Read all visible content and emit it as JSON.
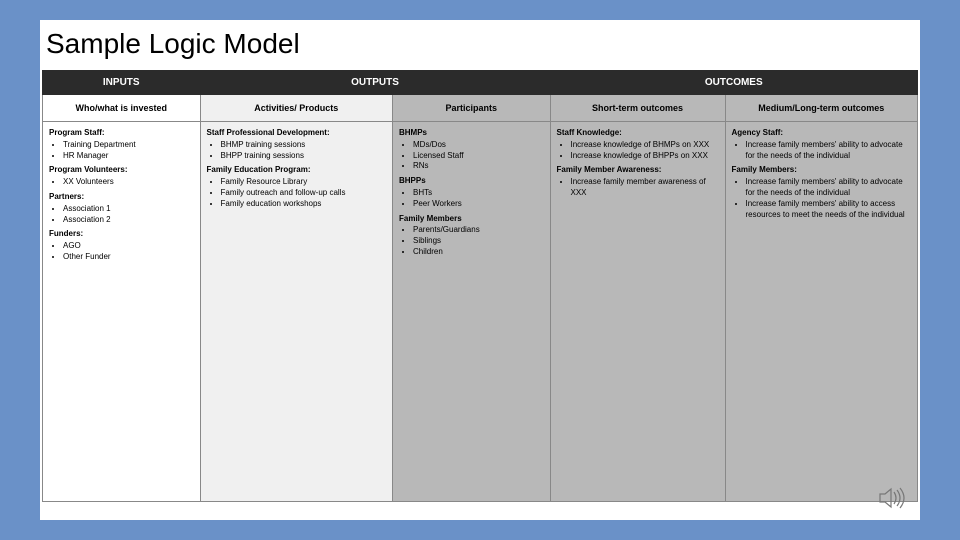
{
  "title": "Sample Logic Model",
  "columns": {
    "widths_pct": [
      18,
      22,
      18,
      20,
      22
    ],
    "bg": [
      "bg-white",
      "bg-lt",
      "bg-gy",
      "bg-gy",
      "bg-gy"
    ]
  },
  "headers_top": [
    {
      "label": "INPUTS",
      "span": 1
    },
    {
      "label": "OUTPUTS",
      "span": 2
    },
    {
      "label": "OUTCOMES",
      "span": 2
    }
  ],
  "headers_sub": [
    "Who/what is invested",
    "Activities/ Products",
    "Participants",
    "Short-term outcomes",
    "Medium/Long-term outcomes"
  ],
  "body": [
    [
      {
        "heading": "Program Staff:",
        "items": [
          "Training Department",
          "HR Manager"
        ]
      },
      {
        "heading": "Program Volunteers:",
        "items": [
          "XX Volunteers"
        ]
      },
      {
        "heading": "Partners:",
        "items": [
          "Association 1",
          "Association 2"
        ]
      },
      {
        "heading": "Funders:",
        "items": [
          "AGO",
          "Other Funder"
        ]
      }
    ],
    [
      {
        "heading": "Staff Professional Development:",
        "items": [
          "BHMP training sessions",
          "BHPP training sessions"
        ]
      },
      {
        "heading": "Family Education Program:",
        "items": [
          "Family Resource Library",
          "Family outreach and follow-up calls",
          "Family education workshops"
        ]
      }
    ],
    [
      {
        "heading": "BHMPs",
        "items": [
          "MDs/Dos",
          "Licensed Staff",
          "RNs"
        ]
      },
      {
        "heading": "BHPPs",
        "items": [
          "BHTs",
          "Peer Workers"
        ]
      },
      {
        "heading": "Family Members",
        "items": [
          "Parents/Guardians",
          "Siblings",
          "Children"
        ]
      }
    ],
    [
      {
        "heading": "Staff Knowledge:",
        "items": [
          "Increase knowledge of BHMPs on XXX",
          "Increase knowledge of BHPPs on XXX"
        ]
      },
      {
        "heading": "Family Member Awareness:",
        "items": [
          "Increase family member awareness of XXX"
        ]
      }
    ],
    [
      {
        "heading": "Agency Staff:",
        "items": [
          "Increase family members' ability to advocate for the needs of the individual"
        ]
      },
      {
        "heading": "Family Members:",
        "items": [
          "Increase family members' ability to advocate for the needs of the individual",
          "Increase family members' ability to access resources to meet the needs of the individual"
        ]
      }
    ]
  ],
  "colors": {
    "slide_bg": "#6a91c8",
    "card_bg": "#ffffff",
    "header_bg": "#2b2b2b",
    "header_fg": "#ffffff",
    "border": "#888888",
    "col_bgs": {
      "white": "#ffffff",
      "lt": "#f0f0f0",
      "gy": "#b8b8b8"
    }
  }
}
